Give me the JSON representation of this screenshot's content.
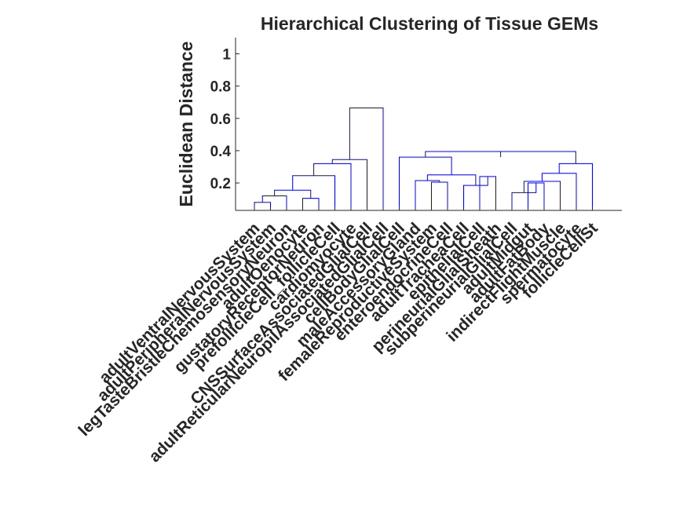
{
  "chart_data": {
    "type": "dendrogram",
    "title": "Hierarchical Clustering of Tissue GEMs",
    "ylabel": "Euclidean Distance",
    "xlabel": "",
    "ylim": [
      0.03,
      1.1
    ],
    "yticks": [
      0.2,
      0.4,
      0.6,
      0.8,
      1
    ],
    "ytick_labels": [
      "0.2",
      "0.4",
      "0.6",
      "0.8",
      "1"
    ],
    "grid": false,
    "line_color": "#0000ff",
    "leaf_labels": [
      "adultVentralNervousSystem",
      "adultPeripheralNervousSystem",
      "legTasteBristleChemosensoryNeuron",
      "adultOenocyte",
      "gustatoryReceptorNeuron",
      "prefollicleCell_follicleCell",
      "cardiomyocyte",
      "CNSSurfaceAssociatedGlialCell",
      "adultReticularNeuropilAssociatedGlialCell",
      "cellBodyGlialCell",
      "maleAccessoryGland",
      "femaleReproductiveSystem",
      "enteroendocrineCell",
      "adultTracheaCell",
      "epithelialCell",
      "perineurialGlialSheath",
      "subperineurialGlialCell",
      "adultMidgut",
      "adultFatBody",
      "indirectFlightMuscle",
      "spermatocyte",
      "follicleCellSt"
    ],
    "links": [
      {
        "a": 1,
        "b": 2,
        "h": 0.08
      },
      {
        "a": 4,
        "b": 5,
        "h": 0.105
      },
      {
        "a": 3,
        "b": 23,
        "h": 0.12
      },
      {
        "a": 25,
        "b": 24,
        "h": 0.155
      },
      {
        "a": 26,
        "b": 6,
        "h": 0.245
      },
      {
        "a": 27,
        "b": 7,
        "h": 0.32
      },
      {
        "a": 28,
        "b": 8,
        "h": 0.345
      },
      {
        "a": 29,
        "b": 9,
        "h": 0.665
      },
      {
        "a": 12,
        "b": 13,
        "h": 0.205
      },
      {
        "a": 11,
        "b": 31,
        "h": 0.215
      },
      {
        "a": 15,
        "b": 16,
        "h": 0.24
      },
      {
        "a": 14,
        "b": 33,
        "h": 0.185
      },
      {
        "a": 32,
        "b": 34,
        "h": 0.25
      },
      {
        "a": 18,
        "b": 19,
        "h": 0.2
      },
      {
        "a": 17,
        "b": 36,
        "h": 0.14
      },
      {
        "a": 37,
        "b": 20,
        "h": 0.21
      },
      {
        "a": 38,
        "b": 21,
        "h": 0.26
      },
      {
        "a": 39,
        "b": 22,
        "h": 0.32
      },
      {
        "a": 10,
        "b": 35,
        "h": 0.36
      },
      {
        "a": 40,
        "b": 41,
        "h": 0.395
      },
      {
        "a": 42,
        "b": 43,
        "h": 0.36
      }
    ]
  }
}
